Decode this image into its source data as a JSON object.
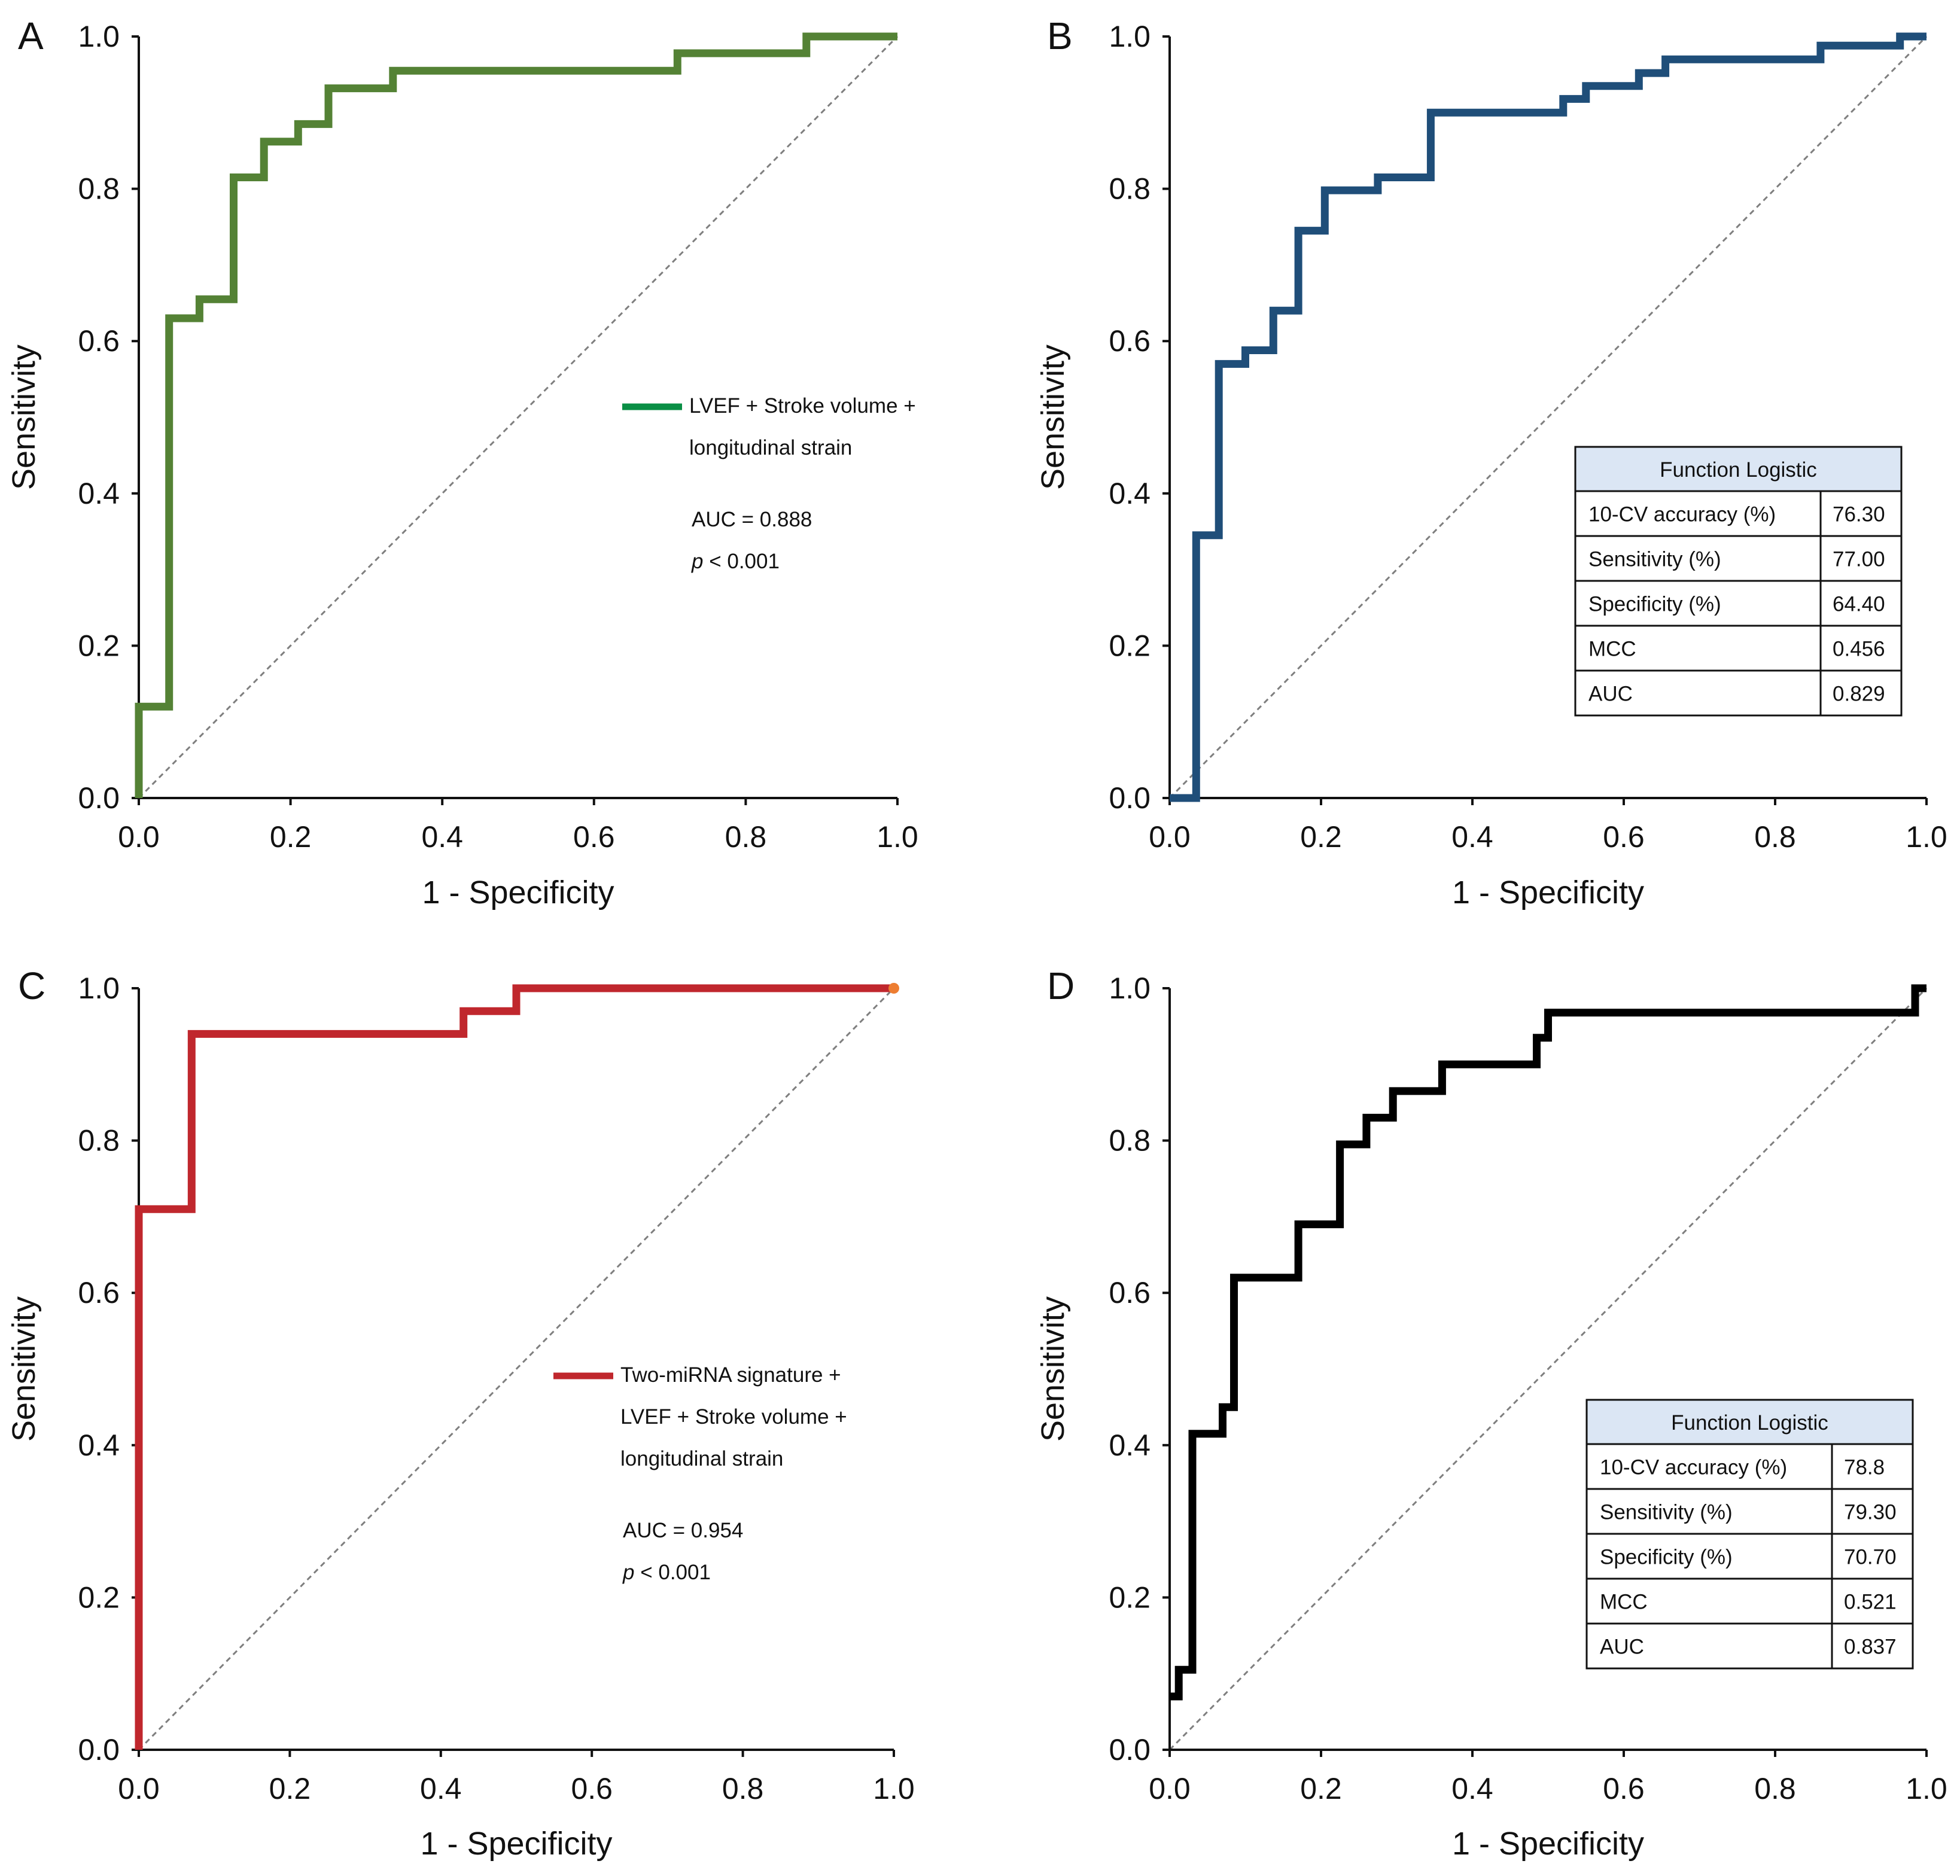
{
  "chart_data": [
    {
      "type": "line",
      "panel_label": "A",
      "xlabel": "1 - Specificity",
      "ylabel": "Sensitivity",
      "xlim": [
        0,
        1
      ],
      "ylim": [
        0,
        1
      ],
      "x_ticks": [
        "0.0",
        "0.2",
        "0.4",
        "0.6",
        "0.8",
        "1.0"
      ],
      "y_ticks": [
        "0.0",
        "0.2",
        "0.4",
        "0.6",
        "0.8",
        "1.0"
      ],
      "reference_line": "diagonal",
      "series": [
        {
          "name": "LVEF + Stroke volume + longitudinal strain",
          "color": "#548235",
          "x": [
            0,
            0,
            0.04,
            0.04,
            0.08,
            0.08,
            0.125,
            0.125,
            0.165,
            0.165,
            0.21,
            0.21,
            0.25,
            0.25,
            0.335,
            0.335,
            0.71,
            0.71,
            0.88,
            0.88,
            1.0
          ],
          "y": [
            0,
            0.12,
            0.12,
            0.63,
            0.63,
            0.655,
            0.655,
            0.815,
            0.815,
            0.862,
            0.862,
            0.885,
            0.885,
            0.932,
            0.932,
            0.955,
            0.955,
            0.978,
            0.978,
            1.0,
            1.0
          ]
        }
      ],
      "legend": {
        "entries": [
          "LVEF + Stroke volume +",
          "longitudinal strain"
        ],
        "color": "#0a8f45",
        "auc_text": "AUC = 0.888",
        "p_label": "p",
        "p_text": " < 0.001"
      }
    },
    {
      "type": "line",
      "panel_label": "B",
      "xlabel": "1 - Specificity",
      "ylabel": "Sensitivity",
      "xlim": [
        0,
        1
      ],
      "ylim": [
        0,
        1
      ],
      "x_ticks": [
        "0.0",
        "0.2",
        "0.4",
        "0.6",
        "0.8",
        "1.0"
      ],
      "y_ticks": [
        "0.0",
        "0.2",
        "0.4",
        "0.6",
        "0.8",
        "1.0"
      ],
      "reference_line": "diagonal",
      "series": [
        {
          "name": "Function Logistic",
          "color": "#1f4e79",
          "x": [
            0,
            0.035,
            0.035,
            0.065,
            0.065,
            0.1,
            0.1,
            0.137,
            0.137,
            0.17,
            0.17,
            0.205,
            0.205,
            0.275,
            0.275,
            0.345,
            0.345,
            0.52,
            0.52,
            0.55,
            0.55,
            0.62,
            0.62,
            0.655,
            0.655,
            0.86,
            0.86,
            0.965,
            0.965,
            1.0
          ],
          "y": [
            0,
            0,
            0.345,
            0.345,
            0.57,
            0.57,
            0.588,
            0.588,
            0.64,
            0.64,
            0.745,
            0.745,
            0.798,
            0.798,
            0.815,
            0.815,
            0.9,
            0.9,
            0.918,
            0.918,
            0.935,
            0.935,
            0.952,
            0.952,
            0.97,
            0.97,
            0.988,
            0.988,
            1.0,
            1.0
          ]
        }
      ],
      "table": {
        "title": "Function Logistic",
        "rows": [
          [
            "10-CV accuracy (%)",
            "76.30"
          ],
          [
            "Sensitivity (%)",
            "77.00"
          ],
          [
            "Specificity (%)",
            "64.40"
          ],
          [
            "MCC",
            "0.456"
          ],
          [
            "AUC",
            "0.829"
          ]
        ]
      }
    },
    {
      "type": "line",
      "panel_label": "C",
      "xlabel": "1 - Specificity",
      "ylabel": "Sensitivity",
      "xlim": [
        0,
        1
      ],
      "ylim": [
        0,
        1
      ],
      "x_ticks": [
        "0.0",
        "0.2",
        "0.4",
        "0.6",
        "0.8",
        "1.0"
      ],
      "y_ticks": [
        "0.0",
        "0.2",
        "0.4",
        "0.6",
        "0.8",
        "1.0"
      ],
      "reference_line": "diagonal",
      "series": [
        {
          "name": "Two-miRNA signature + LVEF + Stroke volume + longitudinal strain",
          "color": "#c0272d",
          "x": [
            0,
            0,
            0.07,
            0.07,
            0.43,
            0.43,
            0.5,
            0.5,
            1.0
          ],
          "y": [
            0,
            0.71,
            0.71,
            0.94,
            0.94,
            0.97,
            0.97,
            1.0,
            1.0
          ]
        }
      ],
      "endpoint_marker": {
        "x": 1.0,
        "y": 1.0,
        "color": "#ed7d31"
      },
      "legend": {
        "entries": [
          "Two-miRNA signature +",
          "LVEF + Stroke volume +",
          "longitudinal strain"
        ],
        "color": "#c0272d",
        "auc_text": "AUC = 0.954",
        "p_label": "p",
        "p_text": " < 0.001"
      }
    },
    {
      "type": "line",
      "panel_label": "D",
      "xlabel": "1 - Specificity",
      "ylabel": "Sensitivity",
      "xlim": [
        0,
        1
      ],
      "ylim": [
        0,
        1
      ],
      "x_ticks": [
        "0.0",
        "0.2",
        "0.4",
        "0.6",
        "0.8",
        "1.0"
      ],
      "y_ticks": [
        "0.0",
        "0.2",
        "0.4",
        "0.6",
        "0.8",
        "1.0"
      ],
      "reference_line": "diagonal",
      "series": [
        {
          "name": "Function Logistic",
          "color": "#000000",
          "x": [
            0,
            0.012,
            0.012,
            0.03,
            0.03,
            0.07,
            0.07,
            0.085,
            0.085,
            0.17,
            0.17,
            0.225,
            0.225,
            0.26,
            0.26,
            0.295,
            0.295,
            0.36,
            0.36,
            0.485,
            0.485,
            0.5,
            0.5,
            0.985,
            0.985,
            1.0
          ],
          "y": [
            0.07,
            0.07,
            0.105,
            0.105,
            0.415,
            0.415,
            0.45,
            0.45,
            0.62,
            0.62,
            0.69,
            0.69,
            0.795,
            0.795,
            0.83,
            0.83,
            0.865,
            0.865,
            0.9,
            0.9,
            0.935,
            0.935,
            0.968,
            0.968,
            1.0,
            1.0
          ]
        }
      ],
      "table": {
        "title": "Function Logistic",
        "rows": [
          [
            "10-CV accuracy (%)",
            "78.8"
          ],
          [
            "Sensitivity (%)",
            "79.30"
          ],
          [
            "Specificity (%)",
            "70.70"
          ],
          [
            "MCC",
            "0.521"
          ],
          [
            "AUC",
            "0.837"
          ]
        ]
      }
    }
  ]
}
